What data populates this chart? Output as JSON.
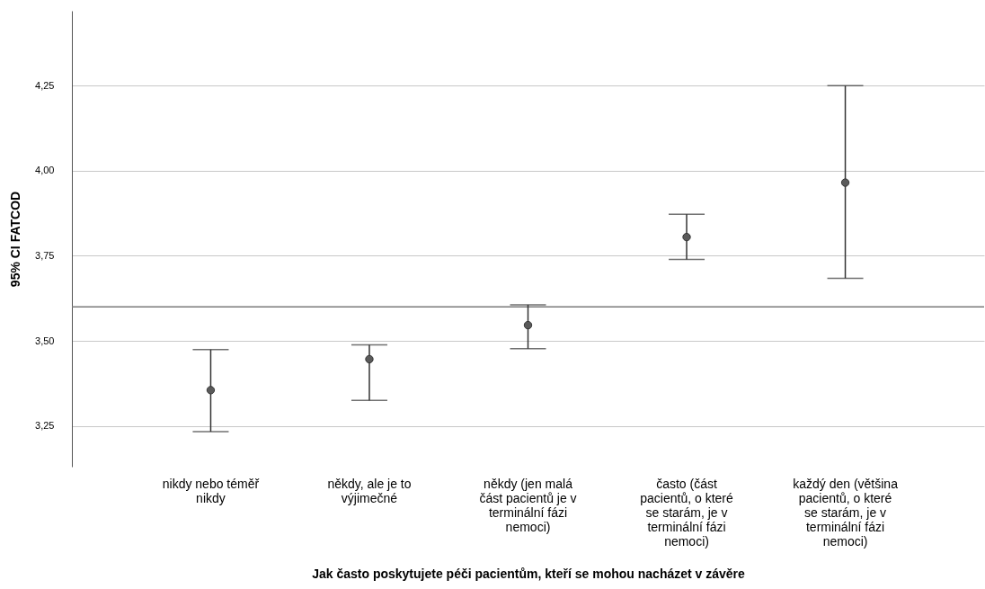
{
  "chart_data": {
    "type": "scatter",
    "xlabel": "Jak často poskytujete péči pacientům, kteří se mohou nacházet v závěre",
    "ylabel": "95% CI FATCOD",
    "categories": [
      "nikdy nebo téměř nikdy",
      "někdy, ale je to výjimečné",
      "někdy (jen malá část pacientů je v terminální fázi nemoci)",
      "často (část pacientů, o které se starám, je v terminální fázi nemoci)",
      "každý den (většina pacientů, o které se starám, je v terminální fázi nemoci)"
    ],
    "series": [
      {
        "color": "#5a5a5a",
        "values": [
          3.355,
          3.446,
          3.546,
          3.805,
          3.965
        ],
        "errors": [
          [
            3.233,
            3.474
          ],
          [
            3.325,
            3.488
          ],
          [
            3.477,
            3.606
          ],
          [
            3.739,
            3.872
          ],
          [
            3.684,
            4.25
          ]
        ]
      }
    ],
    "ylim": [
      3.13,
      4.47
    ],
    "yticks": [
      {
        "value": 3.25,
        "label": "3,25"
      },
      {
        "value": 3.5,
        "label": "3,50"
      },
      {
        "value": 3.75,
        "label": "3,75"
      },
      {
        "value": 4.0,
        "label": "4,00"
      },
      {
        "value": 4.25,
        "label": "4,25"
      }
    ],
    "grid": "y",
    "marker": "circle",
    "ref_lines": [
      {
        "axis": "y",
        "value": 3.6,
        "color": "#7a7a7a"
      }
    ]
  }
}
